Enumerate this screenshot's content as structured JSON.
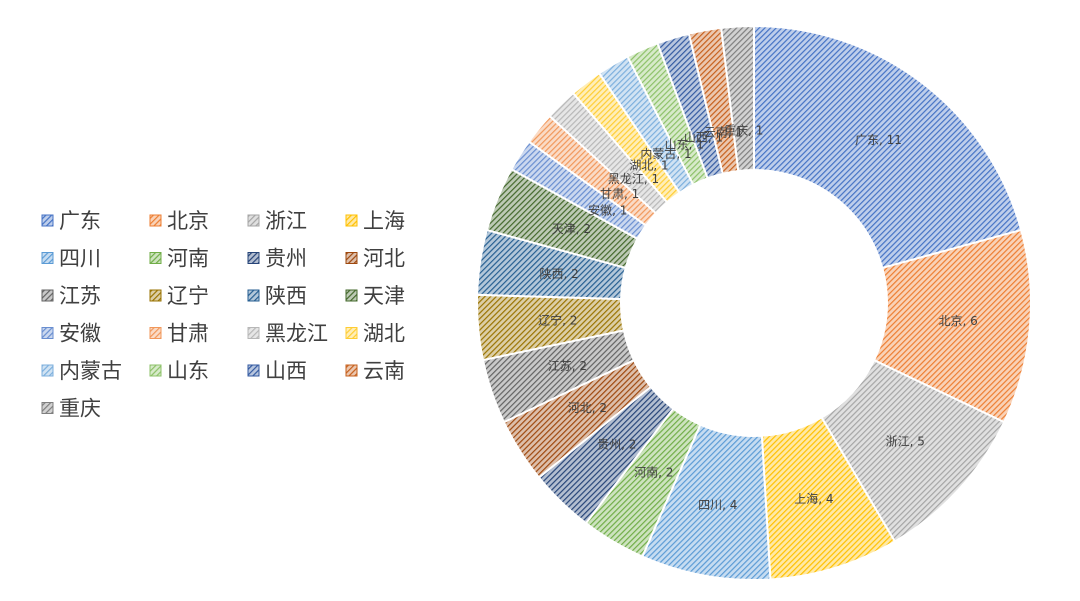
{
  "chart_data": {
    "type": "pie",
    "donut": true,
    "title": "",
    "legend_position": "left",
    "categories": [
      "广东",
      "北京",
      "浙江",
      "上海",
      "四川",
      "河南",
      "贵州",
      "河北",
      "江苏",
      "辽宁",
      "陕西",
      "天津",
      "安徽",
      "甘肃",
      "黑龙江",
      "湖北",
      "内蒙古",
      "山东",
      "山西",
      "云南",
      "重庆"
    ],
    "values": [
      11,
      6,
      5,
      4,
      4,
      2,
      2,
      2,
      2,
      2,
      2,
      2,
      1,
      1,
      1,
      1,
      1,
      1,
      1,
      1,
      1
    ],
    "data_labels": [
      "广东, 11",
      "北京, 6",
      "浙江, 5",
      "上海, 4",
      "四川, 4",
      "河南, 2",
      "贵州, 2",
      "河北, 2",
      "江苏, 2",
      "辽宁, 2",
      "陕西, 2",
      "天津, 2",
      "安徽, 1",
      "甘肃, 1",
      "黑龙江, 1",
      "湖北, 1",
      "内蒙古, 1",
      "山东, 1",
      "山西, 1",
      "云南, 1",
      "重庆, 1"
    ],
    "colors": [
      "#4472C4",
      "#ED7D31",
      "#A5A5A5",
      "#FFC000",
      "#5B9BD5",
      "#70AD47",
      "#264478",
      "#9E480E",
      "#636363",
      "#997300",
      "#255E91",
      "#43682B",
      "#698ED0",
      "#F1975A",
      "#B7B7B7",
      "#FFCD33",
      "#7CAFDD",
      "#8CC168",
      "#335AA1",
      "#C65F1B",
      "#7F7F7F"
    ],
    "fill_pattern": "diagonal-stripes"
  }
}
